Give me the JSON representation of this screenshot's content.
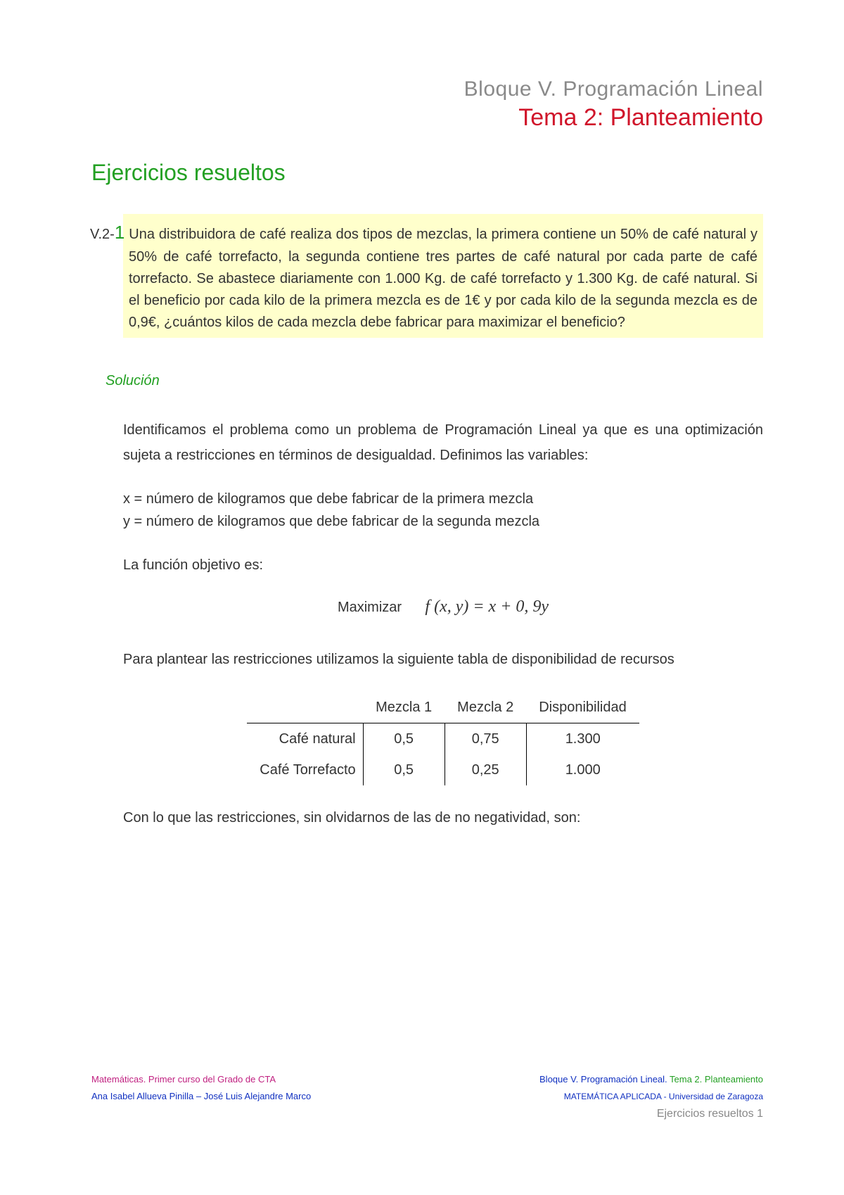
{
  "header": {
    "bloque": "Bloque V. Programación Lineal",
    "tema": "Tema 2: Planteamiento"
  },
  "section_title": "Ejercicios resueltos",
  "problem": {
    "prefix": "V.2-",
    "num": "1",
    "text": "Una distribuidora de café realiza dos tipos de mezclas, la primera contiene un 50% de café natural y 50% de café torrefacto, la segunda contiene tres partes de café natural por cada parte de café torrefacto. Se abastece diariamente con 1.000 Kg. de café torrefacto y 1.300 Kg. de café natural. Si el beneficio por cada kilo de la primera mezcla es de 1€ y por cada kilo de la segunda mezcla es de 0,9€, ¿cuántos kilos de cada mezcla debe fabricar para maximizar el beneficio?"
  },
  "solucion_label": "Solución",
  "solution": {
    "intro": "Identificamos el problema como un problema de Programación Lineal ya que es una optimización sujeta a restricciones en términos de desigualdad. Definimos las variables:",
    "var_x": "x = número de kilogramos que debe fabricar de la primera mezcla",
    "var_y": "y = número de kilogramos que debe fabricar de la segunda mezcla",
    "obj_label": "La función objetivo es:",
    "maximize_word": "Maximizar",
    "objective_formula": "f (x, y) =  x  +  0, 9y",
    "restrict_intro": "Para plantear las restricciones utilizamos la siguiente tabla de disponibilidad de recursos",
    "closing": "Con lo que las restricciones, sin olvidarnos de las de no negatividad, son:"
  },
  "table": {
    "columns": [
      "",
      "Mezcla 1",
      "Mezcla 2",
      "Disponibilidad"
    ],
    "rows": [
      [
        "Café natural",
        "0,5",
        "0,75",
        "1.300"
      ],
      [
        "Café Torrefacto",
        "0,5",
        "0,25",
        "1.000"
      ]
    ]
  },
  "footer": {
    "left_line1": "Matemáticas. Primer curso del Grado de CTA",
    "left_line2": "Ana Isabel Allueva Pinilla – José Luis Alejandre Marco",
    "right_line1a": "Bloque V. Programación Lineal. ",
    "right_line1b": "Tema 2. Planteamiento",
    "right_line2": "MATEMÁTICA APLICADA - Universidad de Zaragoza",
    "right_line3": "Ejercicios resueltos 1"
  },
  "colors": {
    "gray_header": "#8a8a8a",
    "red_tema": "#d0152a",
    "green": "#23a023",
    "highlight_bg": "#ffffcc",
    "pink": "#c02080",
    "blue": "#1030c0",
    "text": "#333333"
  }
}
